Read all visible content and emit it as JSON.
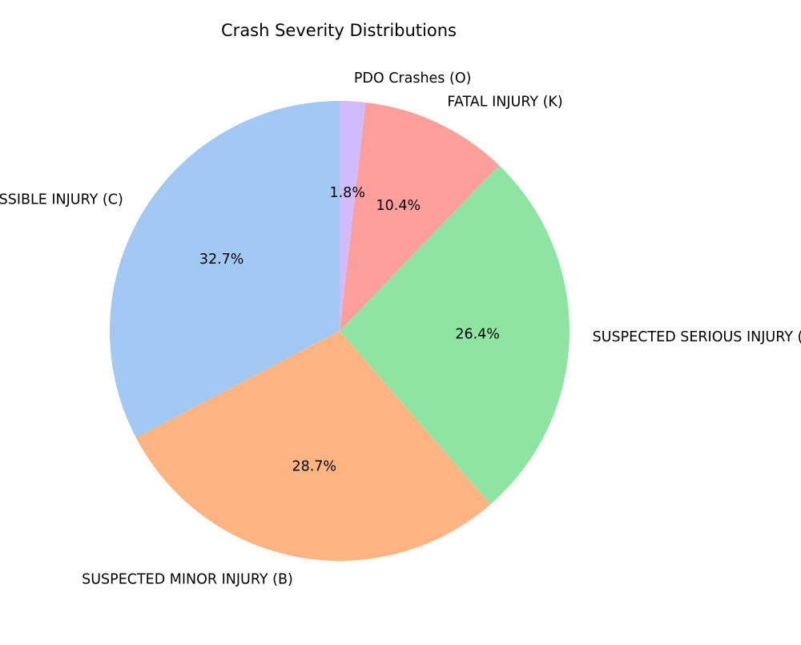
{
  "chart_data": {
    "type": "pie",
    "title": "Crash Severity Distributions",
    "start_angle_deg": 90,
    "direction": "counterclockwise",
    "slices": [
      {
        "label": "POSSIBLE INJURY (C)",
        "value": 32.7,
        "pct_label": "32.7%",
        "color": "#a1c9f4"
      },
      {
        "label": "SUSPECTED MINOR INJURY (B)",
        "value": 28.7,
        "pct_label": "28.7%",
        "color": "#ffb482"
      },
      {
        "label": "SUSPECTED SERIOUS INJURY (A)",
        "value": 26.4,
        "pct_label": "26.4%",
        "color": "#8de5a1"
      },
      {
        "label": "FATAL INJURY (K)",
        "value": 10.4,
        "pct_label": "10.4%",
        "color": "#ff9f9b"
      },
      {
        "label": "PDO Crashes (O)",
        "value": 1.8,
        "pct_label": "1.8%",
        "color": "#d0bbff"
      }
    ]
  }
}
